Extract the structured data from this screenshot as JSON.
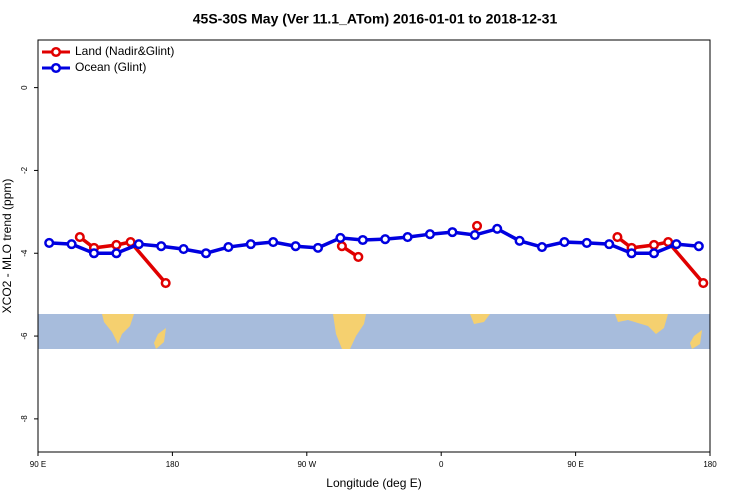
{
  "chart_data": {
    "type": "line",
    "title": "45S-30S May (Ver 11.1_ATom)   2016-01-01 to 2018-12-31",
    "x_label": "Longitude (deg E)",
    "y_label": "XCO2 - MLO trend (ppm)",
    "xlim": [
      90,
      540
    ],
    "ylim": [
      -8.8,
      1.15
    ],
    "xticks": [
      {
        "value": 90,
        "label": "90 E"
      },
      {
        "value": 180,
        "label": "180"
      },
      {
        "value": 270,
        "label": "90 W"
      },
      {
        "value": 360,
        "label": "0"
      },
      {
        "value": 450,
        "label": "90 E"
      },
      {
        "value": 540,
        "label": "180"
      }
    ],
    "yticks": [
      0,
      -2,
      -4,
      -6,
      -8
    ],
    "legend": "top-left",
    "series": [
      {
        "name": "Land (Nadir&Glint)",
        "color": "#e00000",
        "x": [
          118,
          127.5,
          142.5,
          152,
          175.5,
          null,
          293.5,
          304.5,
          null,
          384,
          null,
          478,
          487.5,
          502.5,
          512,
          535.5
        ],
        "values": [
          -3.61,
          -3.87,
          -3.8,
          -3.73,
          -4.72,
          null,
          -3.83,
          -4.09,
          null,
          -3.34,
          null,
          -3.61,
          -3.87,
          -3.8,
          -3.73,
          -4.72
        ]
      },
      {
        "name": "Ocean (Glint)",
        "color": "#0000e0",
        "x": [
          97.5,
          112.5,
          127.5,
          142.5,
          157.5,
          172.5,
          187.5,
          202.5,
          217.5,
          232.5,
          247.5,
          262.5,
          277.5,
          292.5,
          307.5,
          322.5,
          337.5,
          352.5,
          367.5,
          382.5,
          397.5,
          412.5,
          427.5,
          442.5,
          457.5,
          472.5,
          487.5,
          502.5,
          517.5,
          532.5
        ],
        "values": [
          -3.75,
          -3.78,
          -4.0,
          -4.0,
          -3.78,
          -3.83,
          -3.9,
          -4.0,
          -3.85,
          -3.78,
          -3.73,
          -3.83,
          -3.87,
          -3.63,
          -3.68,
          -3.66,
          -3.61,
          -3.54,
          -3.49,
          -3.56,
          -3.41,
          -3.7,
          -3.85,
          -3.73,
          -3.75,
          -3.78,
          -4.0,
          -4.0,
          -3.78,
          -3.83
        ]
      }
    ]
  }
}
